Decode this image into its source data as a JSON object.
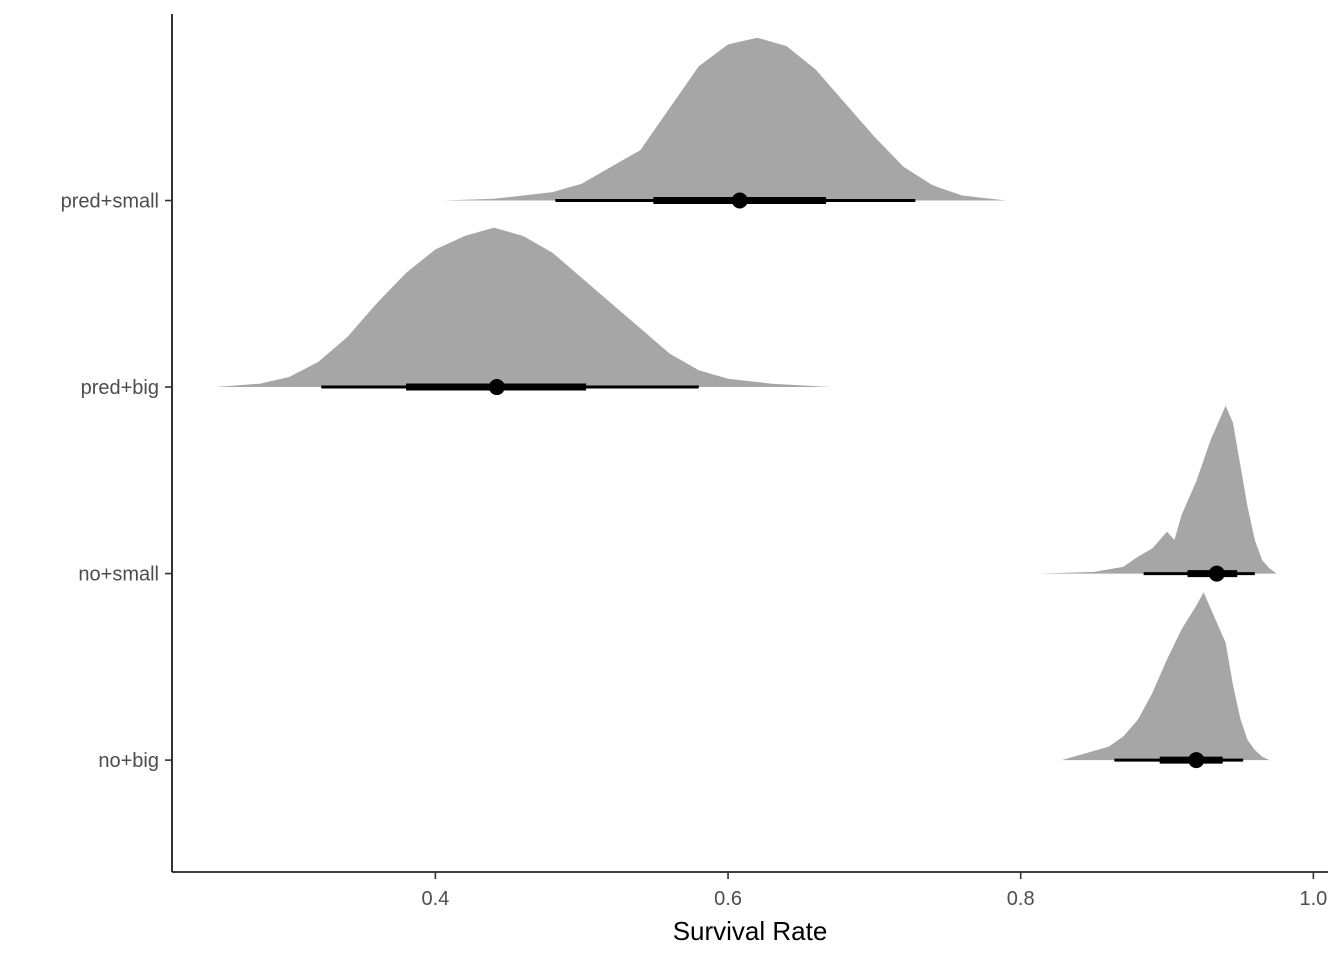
{
  "chart_data": {
    "type": "halfeye",
    "title": "",
    "xlabel": "Survival Rate",
    "ylabel": "",
    "xlim": [
      0.22,
      1.01
    ],
    "x_ticks": [
      0.4,
      0.6,
      0.8,
      1.0
    ],
    "x_tick_labels": [
      "0.4",
      "0.6",
      "0.8",
      "1.0"
    ],
    "grid": false,
    "legend": "none",
    "colors": {
      "density": "#a6a6a6",
      "interval": "#000000"
    },
    "categories": [
      "pred+small",
      "pred+big",
      "no+small",
      "no+big"
    ],
    "series": [
      {
        "category": "pred+small",
        "point": 0.608,
        "interval_66": [
          0.549,
          0.667
        ],
        "interval_95": [
          0.482,
          0.728
        ],
        "density": [
          [
            0.405,
            0.0
          ],
          [
            0.44,
            0.01
          ],
          [
            0.48,
            0.05
          ],
          [
            0.5,
            0.1
          ],
          [
            0.52,
            0.2
          ],
          [
            0.54,
            0.3
          ],
          [
            0.56,
            0.55
          ],
          [
            0.58,
            0.8
          ],
          [
            0.6,
            0.93
          ],
          [
            0.62,
            0.97
          ],
          [
            0.64,
            0.92
          ],
          [
            0.66,
            0.78
          ],
          [
            0.68,
            0.58
          ],
          [
            0.7,
            0.38
          ],
          [
            0.72,
            0.2
          ],
          [
            0.74,
            0.09
          ],
          [
            0.76,
            0.03
          ],
          [
            0.79,
            0.0
          ]
        ]
      },
      {
        "category": "pred+big",
        "point": 0.442,
        "interval_66": [
          0.38,
          0.503
        ],
        "interval_95": [
          0.322,
          0.58
        ],
        "density": [
          [
            0.25,
            0.0
          ],
          [
            0.28,
            0.02
          ],
          [
            0.3,
            0.06
          ],
          [
            0.32,
            0.15
          ],
          [
            0.34,
            0.3
          ],
          [
            0.36,
            0.5
          ],
          [
            0.38,
            0.68
          ],
          [
            0.4,
            0.82
          ],
          [
            0.42,
            0.9
          ],
          [
            0.44,
            0.95
          ],
          [
            0.46,
            0.9
          ],
          [
            0.48,
            0.8
          ],
          [
            0.5,
            0.65
          ],
          [
            0.52,
            0.5
          ],
          [
            0.54,
            0.35
          ],
          [
            0.56,
            0.2
          ],
          [
            0.58,
            0.1
          ],
          [
            0.6,
            0.05
          ],
          [
            0.63,
            0.02
          ],
          [
            0.67,
            0.0
          ]
        ]
      },
      {
        "category": "no+small",
        "point": 0.934,
        "interval_66": [
          0.914,
          0.948
        ],
        "interval_95": [
          0.884,
          0.96
        ],
        "density": [
          [
            0.813,
            0.0
          ],
          [
            0.85,
            0.01
          ],
          [
            0.87,
            0.04
          ],
          [
            0.88,
            0.1
          ],
          [
            0.89,
            0.15
          ],
          [
            0.9,
            0.25
          ],
          [
            0.905,
            0.2
          ],
          [
            0.91,
            0.35
          ],
          [
            0.92,
            0.55
          ],
          [
            0.93,
            0.8
          ],
          [
            0.935,
            0.9
          ],
          [
            0.94,
            1.0
          ],
          [
            0.945,
            0.9
          ],
          [
            0.95,
            0.65
          ],
          [
            0.955,
            0.4
          ],
          [
            0.96,
            0.2
          ],
          [
            0.965,
            0.08
          ],
          [
            0.97,
            0.03
          ],
          [
            0.975,
            0.0
          ]
        ]
      },
      {
        "category": "no+big",
        "point": 0.92,
        "interval_66": [
          0.895,
          0.938
        ],
        "interval_95": [
          0.864,
          0.952
        ],
        "density": [
          [
            0.828,
            0.0
          ],
          [
            0.84,
            0.03
          ],
          [
            0.86,
            0.08
          ],
          [
            0.87,
            0.14
          ],
          [
            0.88,
            0.24
          ],
          [
            0.89,
            0.4
          ],
          [
            0.9,
            0.6
          ],
          [
            0.91,
            0.78
          ],
          [
            0.92,
            0.92
          ],
          [
            0.925,
            1.0
          ],
          [
            0.93,
            0.9
          ],
          [
            0.94,
            0.7
          ],
          [
            0.945,
            0.45
          ],
          [
            0.95,
            0.25
          ],
          [
            0.955,
            0.12
          ],
          [
            0.96,
            0.06
          ],
          [
            0.965,
            0.02
          ],
          [
            0.97,
            0.0
          ]
        ]
      }
    ]
  }
}
